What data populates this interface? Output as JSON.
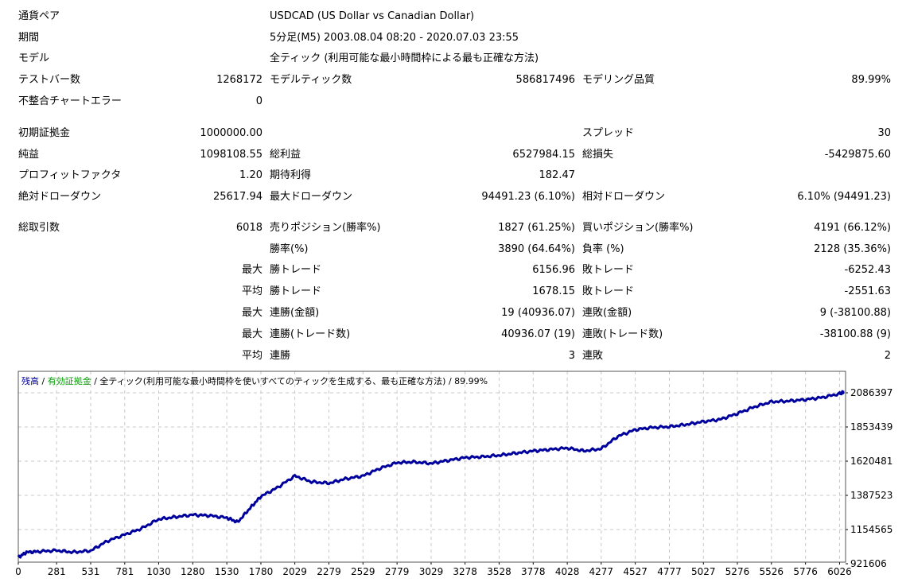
{
  "report": {
    "symbol": {
      "label": "通貨ペア",
      "value": "USDCAD (US Dollar vs Canadian Dollar)"
    },
    "period": {
      "label": "期間",
      "value": "5分足(M5) 2003.08.04 08:20 - 2020.07.03 23:55"
    },
    "model": {
      "label": "モデル",
      "value": "全ティック (利用可能な最小時間枠による最も正確な方法)"
    },
    "bars_tested": {
      "label": "テストバー数",
      "value": "1268172"
    },
    "ticks_modelled": {
      "label": "モデルティック数",
      "value": "586817496"
    },
    "modelling_quality": {
      "label": "モデリング品質",
      "value": "89.99%"
    },
    "mismatched_errors": {
      "label": "不整合チャートエラー",
      "value": "0"
    },
    "initial_deposit": {
      "label": "初期証拠金",
      "value": "1000000.00"
    },
    "spread": {
      "label": "スプレッド",
      "value": "30"
    },
    "net_profit": {
      "label": "純益",
      "value": "1098108.55"
    },
    "gross_profit": {
      "label": "総利益",
      "value": "6527984.15"
    },
    "gross_loss": {
      "label": "総損失",
      "value": "-5429875.60"
    },
    "profit_factor": {
      "label": "プロフィットファクタ",
      "value": "1.20"
    },
    "expected_payoff": {
      "label": "期待利得",
      "value": "182.47"
    },
    "absolute_drawdown": {
      "label": "絶対ドローダウン",
      "value": "25617.94"
    },
    "maximal_drawdown": {
      "label": "最大ドローダウン",
      "value": "94491.23 (6.10%)"
    },
    "relative_drawdown": {
      "label": "相対ドローダウン",
      "value": "6.10% (94491.23)"
    },
    "total_trades": {
      "label": "総取引数",
      "value": "6018"
    },
    "short_positions": {
      "label": "売りポジション(勝率%)",
      "value": "1827 (61.25%)"
    },
    "long_positions": {
      "label": "買いポジション(勝率%)",
      "value": "4191 (66.12%)"
    },
    "profit_trades": {
      "label": "勝率(%)",
      "value": "3890 (64.64%)"
    },
    "loss_trades": {
      "label": "負率 (%)",
      "value": "2128 (35.36%)"
    },
    "largest": {
      "prefix": "最大",
      "profit_label": "勝トレード",
      "profit_value": "6156.96",
      "loss_label": "敗トレード",
      "loss_value": "-6252.43"
    },
    "average": {
      "prefix": "平均",
      "profit_label": "勝トレード",
      "profit_value": "1678.15",
      "loss_label": "敗トレード",
      "loss_value": "-2551.63"
    },
    "max_consecutive": {
      "prefix": "最大",
      "wins_label": "連勝(金額)",
      "wins_value": "19 (40936.07)",
      "losses_label": "連敗(金額)",
      "losses_value": "9 (-38100.88)"
    },
    "max_consecutive_amount": {
      "prefix": "最大",
      "wins_label": "連勝(トレード数)",
      "wins_value": "40936.07 (19)",
      "losses_label": "連敗(トレード数)",
      "losses_value": "-38100.88 (9)"
    },
    "avg_consecutive": {
      "prefix": "平均",
      "wins_label": "連勝",
      "wins_value": "3",
      "losses_label": "連敗",
      "losses_value": "2"
    }
  },
  "chart_legend": {
    "balance": "残高",
    "sep1": " / ",
    "equity": "有効証拠金",
    "sep2": " / ",
    "model": "全ティック(利用可能な最小時間枠を使いすべてのティックを生成する、最も正確な方法)",
    "sep3": " / ",
    "quality": "89.99%"
  },
  "colors": {
    "balance_line": "#00009c",
    "equity_text": "#00a000",
    "grid": "#c8c8c8",
    "axis": "#000000"
  },
  "chart_data": {
    "type": "line",
    "title": "残高 / 有効証拠金 / 全ティック(利用可能な最小時間枠を使いすべてのティックを生成する、最も正確な方法) / 89.99%",
    "xlabel": "",
    "ylabel": "",
    "x_ticks": [
      0,
      281,
      531,
      781,
      1030,
      1280,
      1530,
      1780,
      2029,
      2279,
      2529,
      2779,
      3029,
      3278,
      3528,
      3778,
      4028,
      4277,
      4527,
      4777,
      5027,
      5276,
      5526,
      5776,
      6026
    ],
    "y_ticks": [
      921606,
      1154565,
      1387523,
      1620481,
      1853439,
      2086397
    ],
    "xlim": [
      0,
      6070
    ],
    "ylim": [
      921606,
      2086397
    ],
    "grid": true,
    "legend_position": "top-left",
    "series": [
      {
        "name": "残高",
        "x": [
          0,
          60,
          150,
          281,
          400,
          531,
          650,
          781,
          900,
          1030,
          1150,
          1280,
          1400,
          1530,
          1610,
          1700,
          1780,
          1900,
          2029,
          2150,
          2279,
          2400,
          2529,
          2650,
          2779,
          2900,
          3029,
          3150,
          3278,
          3400,
          3528,
          3650,
          3778,
          3900,
          4028,
          4150,
          4277,
          4400,
          4527,
          4650,
          4777,
          4900,
          5027,
          5150,
          5276,
          5400,
          5526,
          5650,
          5776,
          5900,
          6026,
          6060
        ],
        "values": [
          965000,
          1000000,
          1005000,
          1012000,
          1000000,
          1010000,
          1075000,
          1120000,
          1160000,
          1225000,
          1240000,
          1255000,
          1250000,
          1235000,
          1205000,
          1300000,
          1380000,
          1440000,
          1520000,
          1480000,
          1470000,
          1500000,
          1520000,
          1570000,
          1610000,
          1615000,
          1605000,
          1625000,
          1645000,
          1650000,
          1660000,
          1675000,
          1690000,
          1700000,
          1710000,
          1690000,
          1705000,
          1790000,
          1835000,
          1850000,
          1855000,
          1870000,
          1890000,
          1905000,
          1945000,
          1990000,
          2025000,
          2030000,
          2040000,
          2055000,
          2080000,
          2092000
        ]
      }
    ]
  }
}
